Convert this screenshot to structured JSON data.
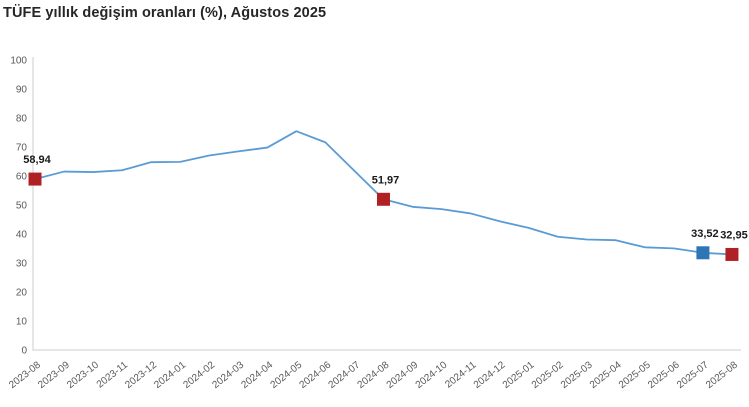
{
  "chart_data": {
    "type": "line",
    "title": "TÜFE yıllık değişim oranları (%), Ağustos 2025",
    "x": [
      "2023-08",
      "2023-09",
      "2023-10",
      "2023-11",
      "2023-12",
      "2024-01",
      "2024-02",
      "2024-03",
      "2024-04",
      "2024-05",
      "2024-06",
      "2024-07",
      "2024-08",
      "2024-09",
      "2024-10",
      "2024-11",
      "2024-12",
      "2025-01",
      "2025-02",
      "2025-03",
      "2025-04",
      "2025-05",
      "2025-06",
      "2025-07",
      "2025-08"
    ],
    "values": [
      58.94,
      61.53,
      61.36,
      61.98,
      64.77,
      64.86,
      67.07,
      68.5,
      69.8,
      75.45,
      71.6,
      61.78,
      51.97,
      49.38,
      48.58,
      47.09,
      44.38,
      42.12,
      39.05,
      38.1,
      37.86,
      35.41,
      35.05,
      33.52,
      32.95
    ],
    "ylim": [
      0,
      100
    ],
    "ytick_step": 10,
    "grid": false,
    "legend": false,
    "line_color": "#5B9BD5",
    "axis_color": "#D6D6D6",
    "tick_color": "#595959",
    "label_color": "#1A1A1A",
    "marked_points": [
      {
        "x": "2023-08",
        "label": "58,94",
        "color": "#B02126"
      },
      {
        "x": "2024-08",
        "label": "51,97",
        "color": "#B02126"
      },
      {
        "x": "2025-07",
        "label": "33,52",
        "color": "#2E75B6"
      },
      {
        "x": "2025-08",
        "label": "32,95",
        "color": "#B02126"
      }
    ]
  }
}
